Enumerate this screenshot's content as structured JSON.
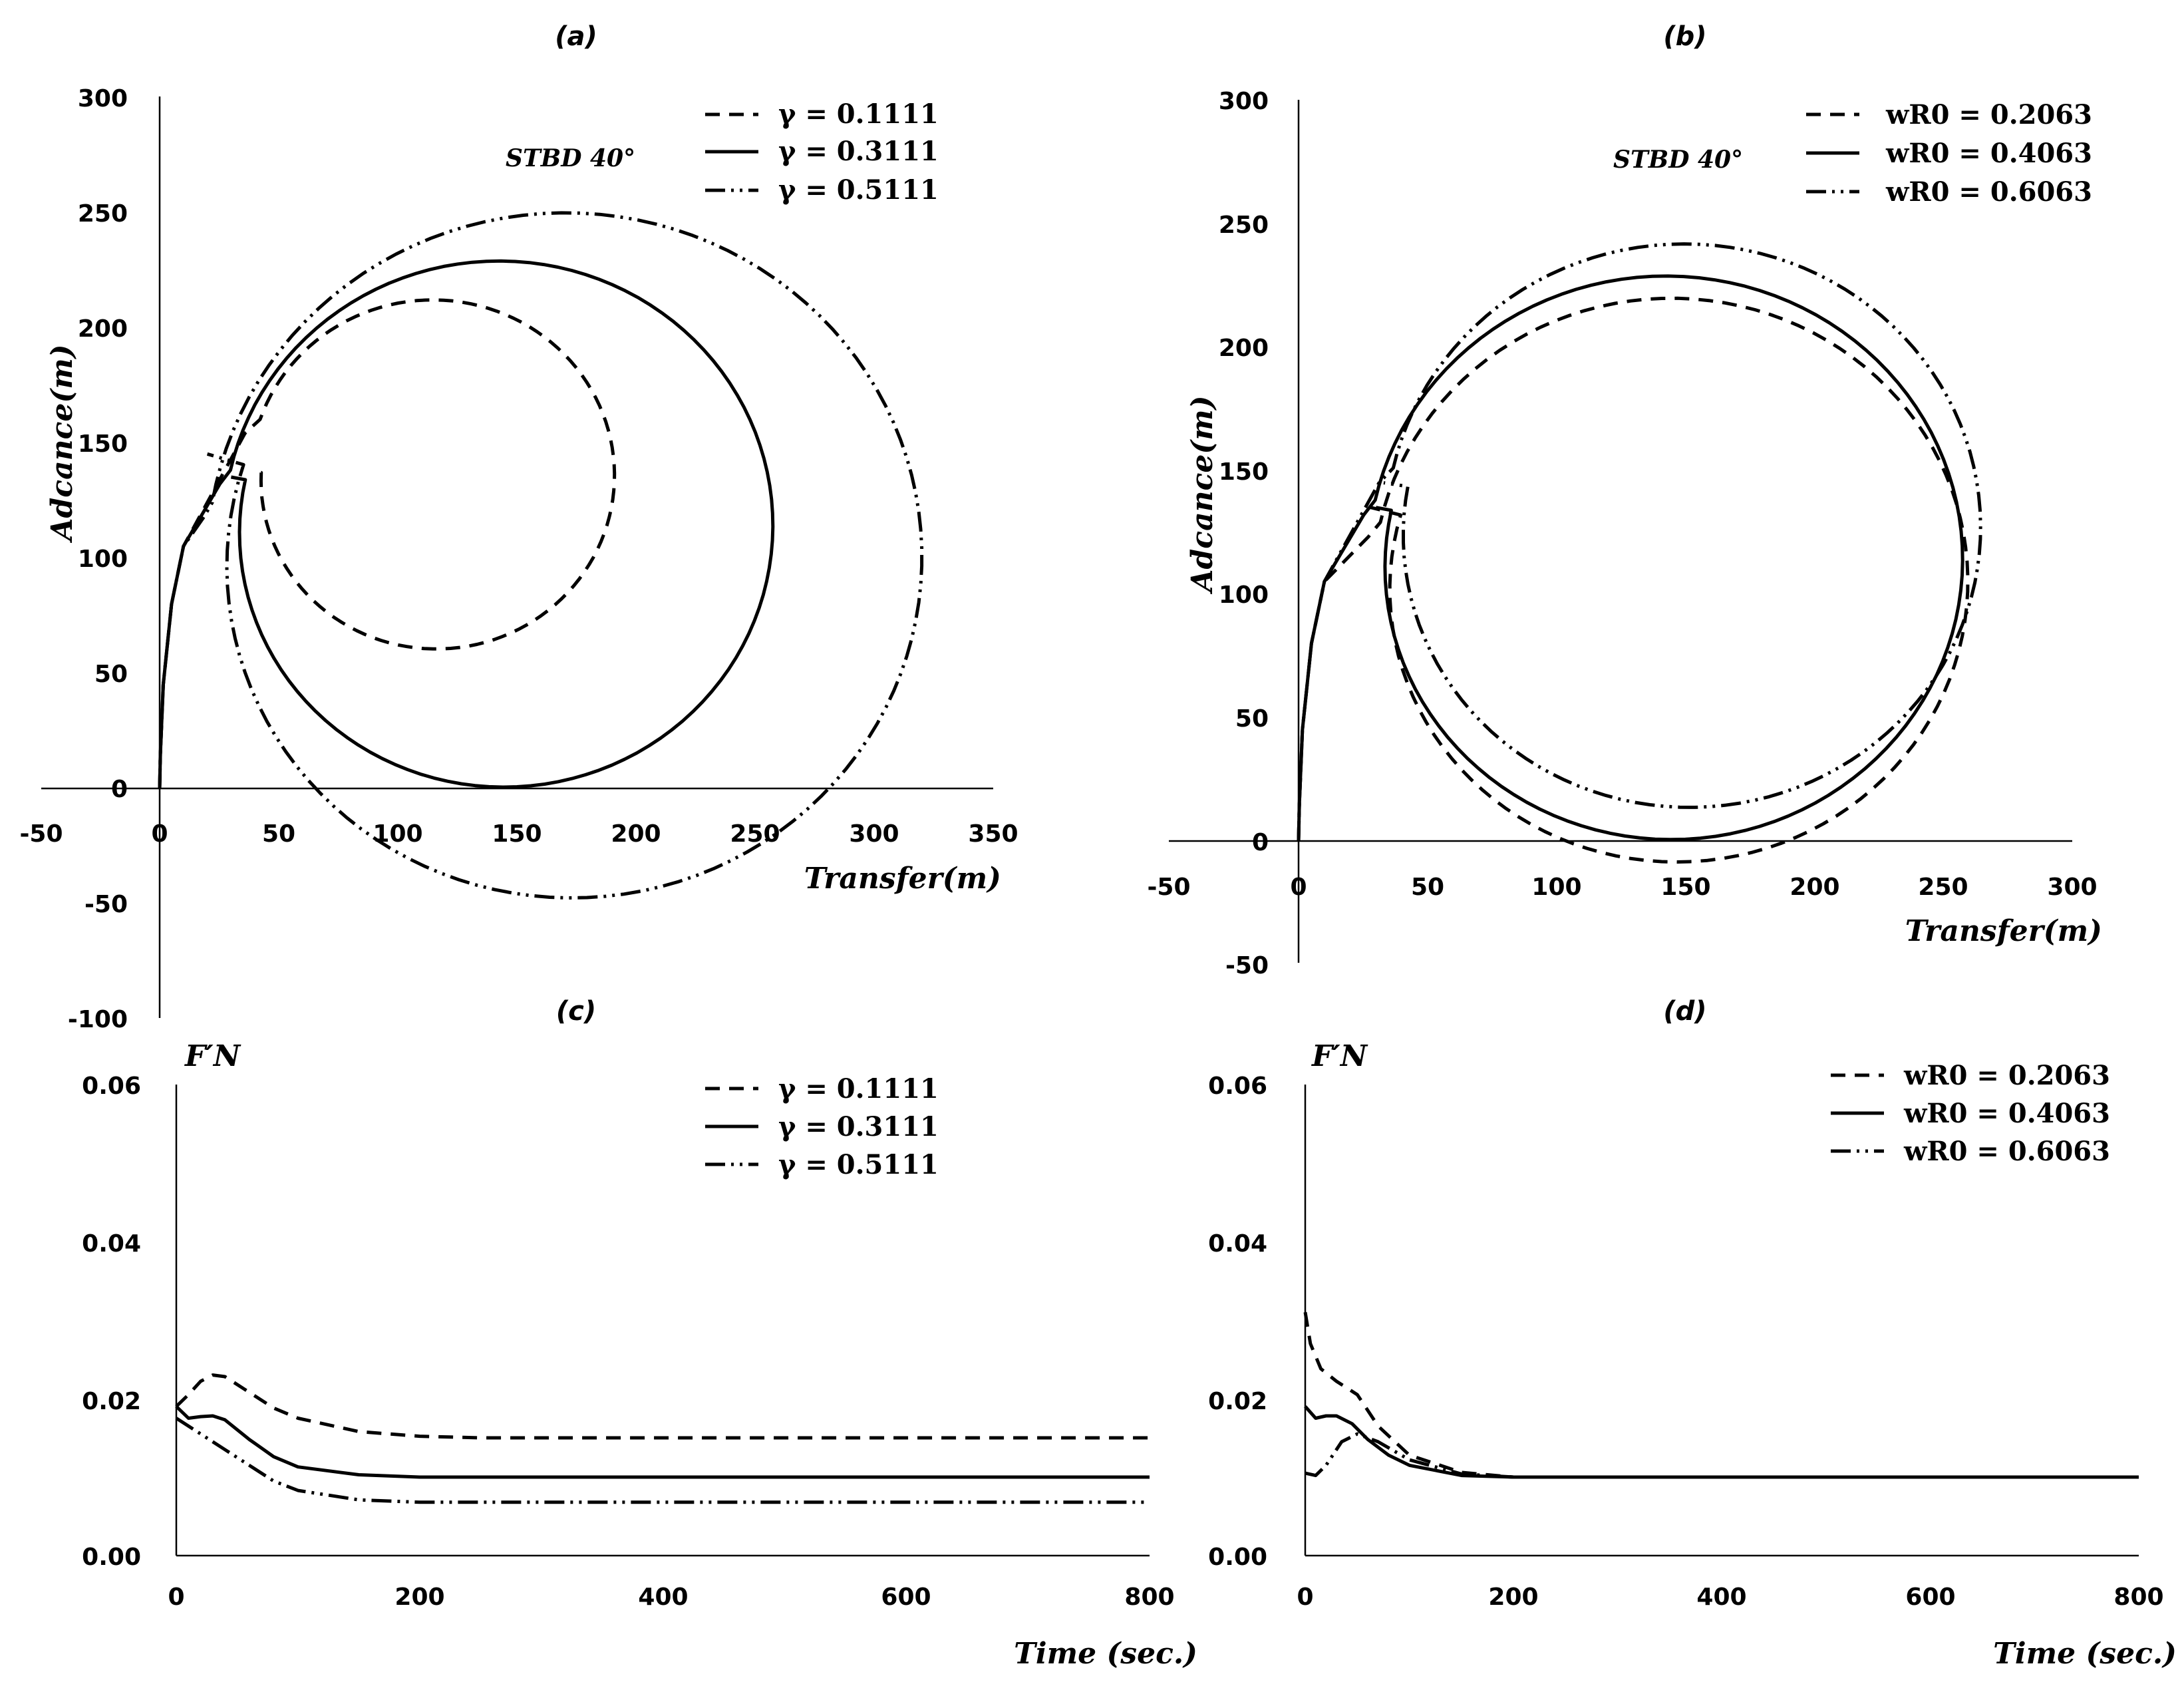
{
  "chart_data": [
    {
      "id": "a",
      "type": "line",
      "title": "(a)",
      "xlabel": "Transfer(m)",
      "ylabel": "Adcance(m)",
      "xlim": [
        -50,
        350
      ],
      "ylim": [
        -100,
        300
      ],
      "xticks": [
        "-50",
        "0",
        "50",
        "100",
        "150",
        "200",
        "250",
        "300",
        "350"
      ],
      "yticks": [
        "-100",
        "-50",
        "0",
        "50",
        "100",
        "150",
        "200",
        "250",
        "300"
      ],
      "annotation": "STBD 40°",
      "legend_position": "top-right",
      "series": [
        {
          "name": "γ = 0.1111",
          "style": "dash",
          "kind": "turning",
          "center": [
            115,
            135
          ],
          "radius": 77,
          "end": [
            40,
            137
          ]
        },
        {
          "name": "γ = 0.3111",
          "style": "solid",
          "kind": "turning",
          "center": [
            143,
            113
          ],
          "radius": 116,
          "end": [
            30,
            135
          ]
        },
        {
          "name": "γ = 0.5111",
          "style": "dashdotdot",
          "kind": "turning",
          "center": [
            171,
            99
          ],
          "radius": 151,
          "end": [
            20,
            145
          ]
        }
      ]
    },
    {
      "id": "b",
      "type": "line",
      "title": "(b)",
      "xlabel": "Transfer(m)",
      "ylabel": "Adcance(m)",
      "xlim": [
        -50,
        300
      ],
      "ylim": [
        -50,
        300
      ],
      "xticks": [
        "-50",
        "0",
        "50",
        "100",
        "150",
        "200",
        "250",
        "300"
      ],
      "yticks": [
        "-50",
        "0",
        "50",
        "100",
        "150",
        "200",
        "250",
        "300"
      ],
      "annotation": "STBD 40°",
      "legend_position": "top-right",
      "series": [
        {
          "name": "wR0 = 0.2063",
          "style": "dash",
          "kind": "turning",
          "center": [
            145,
            104
          ],
          "radius": 116,
          "end": [
            28,
            135
          ]
        },
        {
          "name": "wR0 = 0.4063",
          "style": "solid",
          "kind": "turning",
          "center": [
            143,
            113
          ],
          "radius": 116,
          "end": [
            30,
            135
          ]
        },
        {
          "name": "wR0 = 0.6063",
          "style": "dashdotdot",
          "kind": "turning",
          "center": [
            150,
            126
          ],
          "radius": 116,
          "end": [
            33,
            145
          ]
        }
      ]
    },
    {
      "id": "c",
      "type": "line",
      "title": "(c)",
      "xlabel": "Time (sec.)",
      "ylabel": "F′N",
      "xlim": [
        0,
        800
      ],
      "ylim": [
        0,
        0.06
      ],
      "xticks": [
        "0",
        "200",
        "400",
        "600",
        "800"
      ],
      "yticks": [
        "0.00",
        "0.02",
        "0.04",
        "0.06"
      ],
      "legend_position": "top-right",
      "series": [
        {
          "name": "γ = 0.1111",
          "style": "dash",
          "kind": "points",
          "x": [
            0,
            10,
            20,
            30,
            40,
            60,
            80,
            100,
            150,
            200,
            250,
            300,
            800
          ],
          "y": [
            0.019,
            0.0205,
            0.0222,
            0.023,
            0.0228,
            0.0208,
            0.0188,
            0.0175,
            0.0158,
            0.0152,
            0.015,
            0.015,
            0.015
          ]
        },
        {
          "name": "γ = 0.3111",
          "style": "solid",
          "kind": "points",
          "x": [
            0,
            10,
            20,
            30,
            40,
            60,
            80,
            100,
            150,
            200,
            250,
            300,
            800
          ],
          "y": [
            0.019,
            0.0175,
            0.0177,
            0.0178,
            0.0173,
            0.0148,
            0.0126,
            0.0113,
            0.0103,
            0.01,
            0.01,
            0.01,
            0.01
          ]
        },
        {
          "name": "γ = 0.5111",
          "style": "dashdotdot",
          "kind": "points",
          "x": [
            0,
            20,
            40,
            60,
            80,
            100,
            150,
            200,
            250,
            800
          ],
          "y": [
            0.0175,
            0.0155,
            0.0135,
            0.0115,
            0.0095,
            0.0083,
            0.0071,
            0.0068,
            0.0068,
            0.0068
          ]
        }
      ]
    },
    {
      "id": "d",
      "type": "line",
      "title": "(d)",
      "xlabel": "Time (sec.)",
      "ylabel": "F′N",
      "xlim": [
        0,
        800
      ],
      "ylim": [
        0,
        0.06
      ],
      "xticks": [
        "0",
        "200",
        "400",
        "600",
        "800"
      ],
      "yticks": [
        "0.00",
        "0.02",
        "0.04",
        "0.06"
      ],
      "legend_position": "top-right",
      "series": [
        {
          "name": "wR0 = 0.2063",
          "style": "dash",
          "kind": "points",
          "x": [
            0,
            5,
            15,
            30,
            50,
            70,
            100,
            150,
            200,
            800
          ],
          "y": [
            0.031,
            0.027,
            0.0238,
            0.0222,
            0.0205,
            0.0165,
            0.0128,
            0.0106,
            0.01,
            0.01
          ]
        },
        {
          "name": "wR0 = 0.4063",
          "style": "solid",
          "kind": "points",
          "x": [
            0,
            10,
            20,
            30,
            45,
            60,
            80,
            100,
            150,
            200,
            800
          ],
          "y": [
            0.019,
            0.0175,
            0.0178,
            0.0178,
            0.0168,
            0.0148,
            0.0128,
            0.0115,
            0.0102,
            0.01,
            0.01
          ]
        },
        {
          "name": "wR0 = 0.6063",
          "style": "dashdotdot",
          "kind": "points",
          "x": [
            0,
            10,
            20,
            35,
            50,
            70,
            100,
            150,
            200,
            800
          ],
          "y": [
            0.0105,
            0.0102,
            0.0115,
            0.0145,
            0.0155,
            0.0145,
            0.0122,
            0.0104,
            0.01,
            0.01
          ]
        }
      ]
    }
  ]
}
